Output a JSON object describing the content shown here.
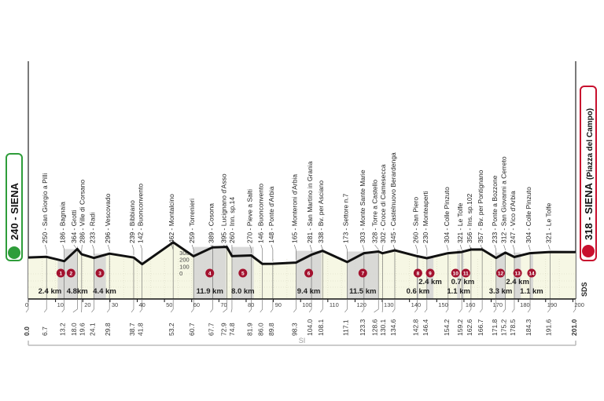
{
  "start": {
    "label": "240 - SIENA",
    "color": "#2e9d3a",
    "icon": "bicycle-icon"
  },
  "finish": {
    "label": "318 - SIENA",
    "sub": "(Piazza del Campo)",
    "color": "#c8102e",
    "icon": "bicycle-icon"
  },
  "sds_label": "SDS",
  "si_label": "SI",
  "colors": {
    "profile": "#111111",
    "fill": "#f6f7e4",
    "sector": "#d4d4d4",
    "badge": "#a3122f"
  },
  "elevation_ticks": [
    0,
    100,
    200,
    300
  ],
  "axis_ticks": [
    0,
    10,
    20,
    30,
    40,
    50,
    60,
    70,
    80,
    90,
    100,
    110,
    120,
    130,
    140,
    150,
    160,
    170,
    180,
    190,
    200
  ],
  "km_start": "0.0",
  "km_finish": "201.0",
  "waypoints": [
    {
      "km": 6.7,
      "alt": 250,
      "name": "250 - San Giorgio a Pilli",
      "km_label": "6.7"
    },
    {
      "km": 13.2,
      "alt": 186,
      "name": "186 - Bagnaia",
      "km_label": "13.2"
    },
    {
      "km": 18.0,
      "alt": 364,
      "name": "364 - Grotti",
      "km_label": "18.0"
    },
    {
      "km": 19.6,
      "alt": 286,
      "name": "286 - Ville di Corsano",
      "km_label": "19.6"
    },
    {
      "km": 24.1,
      "alt": 233,
      "name": "233 - Radi",
      "km_label": "24.1"
    },
    {
      "km": 29.8,
      "alt": 296,
      "name": "296 - Vescovado",
      "km_label": "29.8"
    },
    {
      "km": 38.7,
      "alt": 239,
      "name": "239 - Bibbiano",
      "km_label": "38.7"
    },
    {
      "km": 41.8,
      "alt": 142,
      "name": "142 - Buonconvento",
      "km_label": "41.8"
    },
    {
      "km": 53.2,
      "alt": 462,
      "name": "462 - Montalcino",
      "km_label": "53.2"
    },
    {
      "km": 60.7,
      "alt": 259,
      "name": "259 - Torrenieri",
      "km_label": "60.7"
    },
    {
      "km": 67.7,
      "alt": 389,
      "name": "389 - Cosona",
      "km_label": "67.7"
    },
    {
      "km": 72.9,
      "alt": 395,
      "name": "395 - Lucignano d'Asso",
      "km_label": "72.9"
    },
    {
      "km": 74.8,
      "alt": 260,
      "name": "260 - Inn. sp.14",
      "km_label": "74.8"
    },
    {
      "km": 81.9,
      "alt": 270,
      "name": "270 - Pieve a Salti",
      "km_label": "81.9"
    },
    {
      "km": 86.0,
      "alt": 146,
      "name": "146 - Buonconvento",
      "km_label": "86.0"
    },
    {
      "km": 89.8,
      "alt": 148,
      "name": "148 - Ponte d'Arbia",
      "km_label": "89.8"
    },
    {
      "km": 98.3,
      "alt": 165,
      "name": "165 - Monteroni d'Arbia",
      "km_label": "98.3"
    },
    {
      "km": 104.0,
      "alt": 281,
      "name": "281 - San Martino in Grania",
      "km_label": "104.0"
    },
    {
      "km": 108.1,
      "alt": 338,
      "name": "338 - Bv. per Asciano",
      "km_label": "108.1"
    },
    {
      "km": 117.1,
      "alt": 173,
      "name": "173 - Settore n.7",
      "km_label": "117.1"
    },
    {
      "km": 123.3,
      "alt": 303,
      "name": "303 - Monte Sante Marie",
      "km_label": "123.3"
    },
    {
      "km": 128.6,
      "alt": 328,
      "name": "328 - Torre a Castello",
      "km_label": "128.6"
    },
    {
      "km": 130.1,
      "alt": 302,
      "name": "302 - Croce di Camesecca",
      "km_label": "130.1"
    },
    {
      "km": 134.6,
      "alt": 345,
      "name": "345 - Castelnuovo Berardenga",
      "km_label": "134.6"
    },
    {
      "km": 142.8,
      "alt": 260,
      "name": "260 - San Piero",
      "km_label": "142.8"
    },
    {
      "km": 146.4,
      "alt": 230,
      "name": "230 - Monteaperti",
      "km_label": "146.4"
    },
    {
      "km": 154.2,
      "alt": 304,
      "name": "304 - Colle Pinzuto",
      "km_label": "154.2"
    },
    {
      "km": 159.2,
      "alt": 321,
      "name": "321 - Le Tolfe",
      "km_label": "159.2"
    },
    {
      "km": 162.6,
      "alt": 356,
      "name": "356 - Ins. sp.102",
      "km_label": "162.6"
    },
    {
      "km": 166.7,
      "alt": 357,
      "name": "357 - Bv. per Pontignano",
      "km_label": "166.7"
    },
    {
      "km": 171.8,
      "alt": 233,
      "name": "233 - Ponte a Bozzone",
      "km_label": "171.8"
    },
    {
      "km": 175.2,
      "alt": 312,
      "name": "312 - San Giovanni a Cerreto",
      "km_label": "175.2"
    },
    {
      "km": 178.5,
      "alt": 247,
      "name": "247 - Vico d'Arbia",
      "km_label": "178.5"
    },
    {
      "km": 184.3,
      "alt": 304,
      "name": "304 - Colle Pinzuto",
      "km_label": "184.3"
    },
    {
      "km": 191.6,
      "alt": 321,
      "name": "321 - Le Tolfe",
      "km_label": "191.6"
    }
  ],
  "start_alt": 240,
  "finish_alt": 318,
  "sectors": [
    {
      "n": "1",
      "from": 10.8,
      "to": 13.2,
      "length": "2.4 km"
    },
    {
      "n": "2",
      "from": 13.2,
      "to": 18.0,
      "length": "4.8km"
    },
    {
      "n": "3",
      "from": 24.1,
      "to": 28.5,
      "length": "4.4 km"
    },
    {
      "n": "4",
      "from": 60.7,
      "to": 72.6,
      "length": "11.9 km"
    },
    {
      "n": "5",
      "from": 74.8,
      "to": 82.8,
      "length": "8.0 km"
    },
    {
      "n": "6",
      "from": 98.3,
      "to": 107.7,
      "length": "9.4 km"
    },
    {
      "n": "7",
      "from": 117.1,
      "to": 128.6,
      "length": "11.5 km"
    },
    {
      "n": "8",
      "from": 142.8,
      "to": 143.4,
      "length": "0.6 km"
    },
    {
      "n": "9",
      "from": 146.4,
      "to": 148.8,
      "length": "2.4 km"
    },
    {
      "n": "10",
      "from": 157.5,
      "to": 158.6,
      "length": "1.1 km"
    },
    {
      "n": "11",
      "from": 159.2,
      "to": 159.9,
      "length": "0.7 km"
    },
    {
      "n": "12",
      "from": 171.8,
      "to": 175.1,
      "length": "3.3 km"
    },
    {
      "n": "13",
      "from": 178.5,
      "to": 180.9,
      "length": "2.4 km"
    },
    {
      "n": "14",
      "from": 184.3,
      "to": 185.4,
      "length": "1.1 km"
    }
  ]
}
